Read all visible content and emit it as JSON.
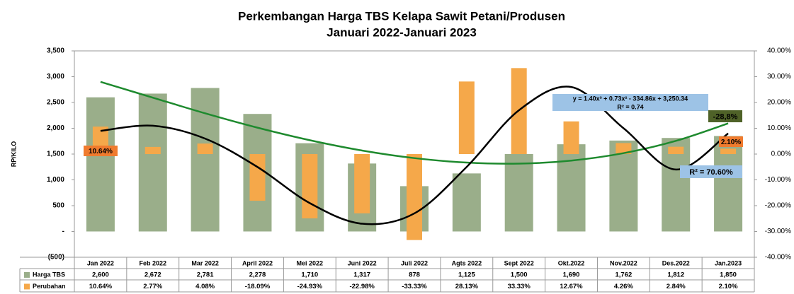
{
  "chart_data": {
    "type": "bar-line",
    "title": "Perkembangan Harga TBS Kelapa Sawit Petani/Produsen",
    "subtitle": "Januari  2022-Januari 2023",
    "y_label": "RP/KILO",
    "categories": [
      "Jan 2022",
      "Feb 2022",
      "Mar 2022",
      "April 2022",
      "Mei 2022",
      "Juni 2022",
      "Juli 2022",
      "Agts 2022",
      "Sept 2022",
      "Okt.2022",
      "Nov.2022",
      "Des.2022",
      "Jan.2023"
    ],
    "series": [
      {
        "name": "Harga TBS",
        "color": "#9aae8a",
        "values": [
          2600,
          2672,
          2781,
          2278,
          1710,
          1317,
          878,
          1125,
          1500,
          1690,
          1762,
          1812,
          1850
        ],
        "value_labels": [
          "2,600",
          "2,672",
          "2,781",
          "2,278",
          "1,710",
          "1,317",
          "878",
          "1,125",
          "1,500",
          "1,690",
          "1,762",
          "1,812",
          "1,850"
        ]
      },
      {
        "name": "Perubahan",
        "color": "#f5a84a",
        "axis": "y2",
        "values": [
          10.64,
          2.77,
          4.08,
          -18.09,
          -24.93,
          -22.98,
          -33.33,
          28.13,
          33.33,
          12.67,
          4.26,
          2.84,
          2.1
        ],
        "value_labels": [
          "10.64%",
          "2.77%",
          "4.08%",
          "-18.09%",
          "-24.93%",
          "-22.98%",
          "-33.33%",
          "28.13%",
          "33.33%",
          "12.67%",
          "4.26%",
          "2.84%",
          "2.10%"
        ]
      }
    ],
    "trendlines": [
      {
        "color": "#1e8a2e",
        "values": [
          2900,
          2594,
          2290,
          2012,
          1769,
          1569,
          1422,
          1335,
          1315,
          1374,
          1518,
          1756,
          2095
        ]
      },
      {
        "color": "#000000",
        "axis": "y2",
        "values": [
          9,
          11,
          6,
          -5,
          -19,
          -27,
          -23,
          -5,
          17,
          26,
          10,
          -6,
          8
        ]
      }
    ],
    "annotations": [
      "y = 1.40x³ + 0.73x² - 334.86x + 3,250.34",
      "R² = 0.74",
      "-28,8%",
      "R² = 70.60%",
      "10.64%",
      "2.10%"
    ],
    "ylim": [
      -500,
      3500
    ],
    "yticks": [
      {
        "value": -500,
        "label": "(500)"
      },
      {
        "value": 0,
        "label": "-"
      },
      500,
      {
        "value": 1000,
        "label": "1,000"
      },
      {
        "value": 1500,
        "label": "1,500"
      },
      {
        "value": 2000,
        "label": "2,000"
      },
      {
        "value": 2500,
        "label": "2,500"
      },
      {
        "value": 3000,
        "label": "3,000"
      },
      {
        "value": 3500,
        "label": "3,500"
      }
    ],
    "y2lim": [
      -40,
      40
    ],
    "y2ticks": [
      {
        "value": -40,
        "label": "-40.00%"
      },
      {
        "value": -30,
        "label": "-30.00%"
      },
      {
        "value": -20,
        "label": "-20.00%"
      },
      {
        "value": -10,
        "label": "-10.00%"
      },
      {
        "value": 0,
        "label": "0.00%"
      },
      {
        "value": 10,
        "label": "10.00%"
      },
      {
        "value": 20,
        "label": "20.00%"
      },
      {
        "value": 30,
        "label": "30.00%"
      },
      {
        "value": 40,
        "label": "40.00%"
      }
    ],
    "grid": false
  }
}
